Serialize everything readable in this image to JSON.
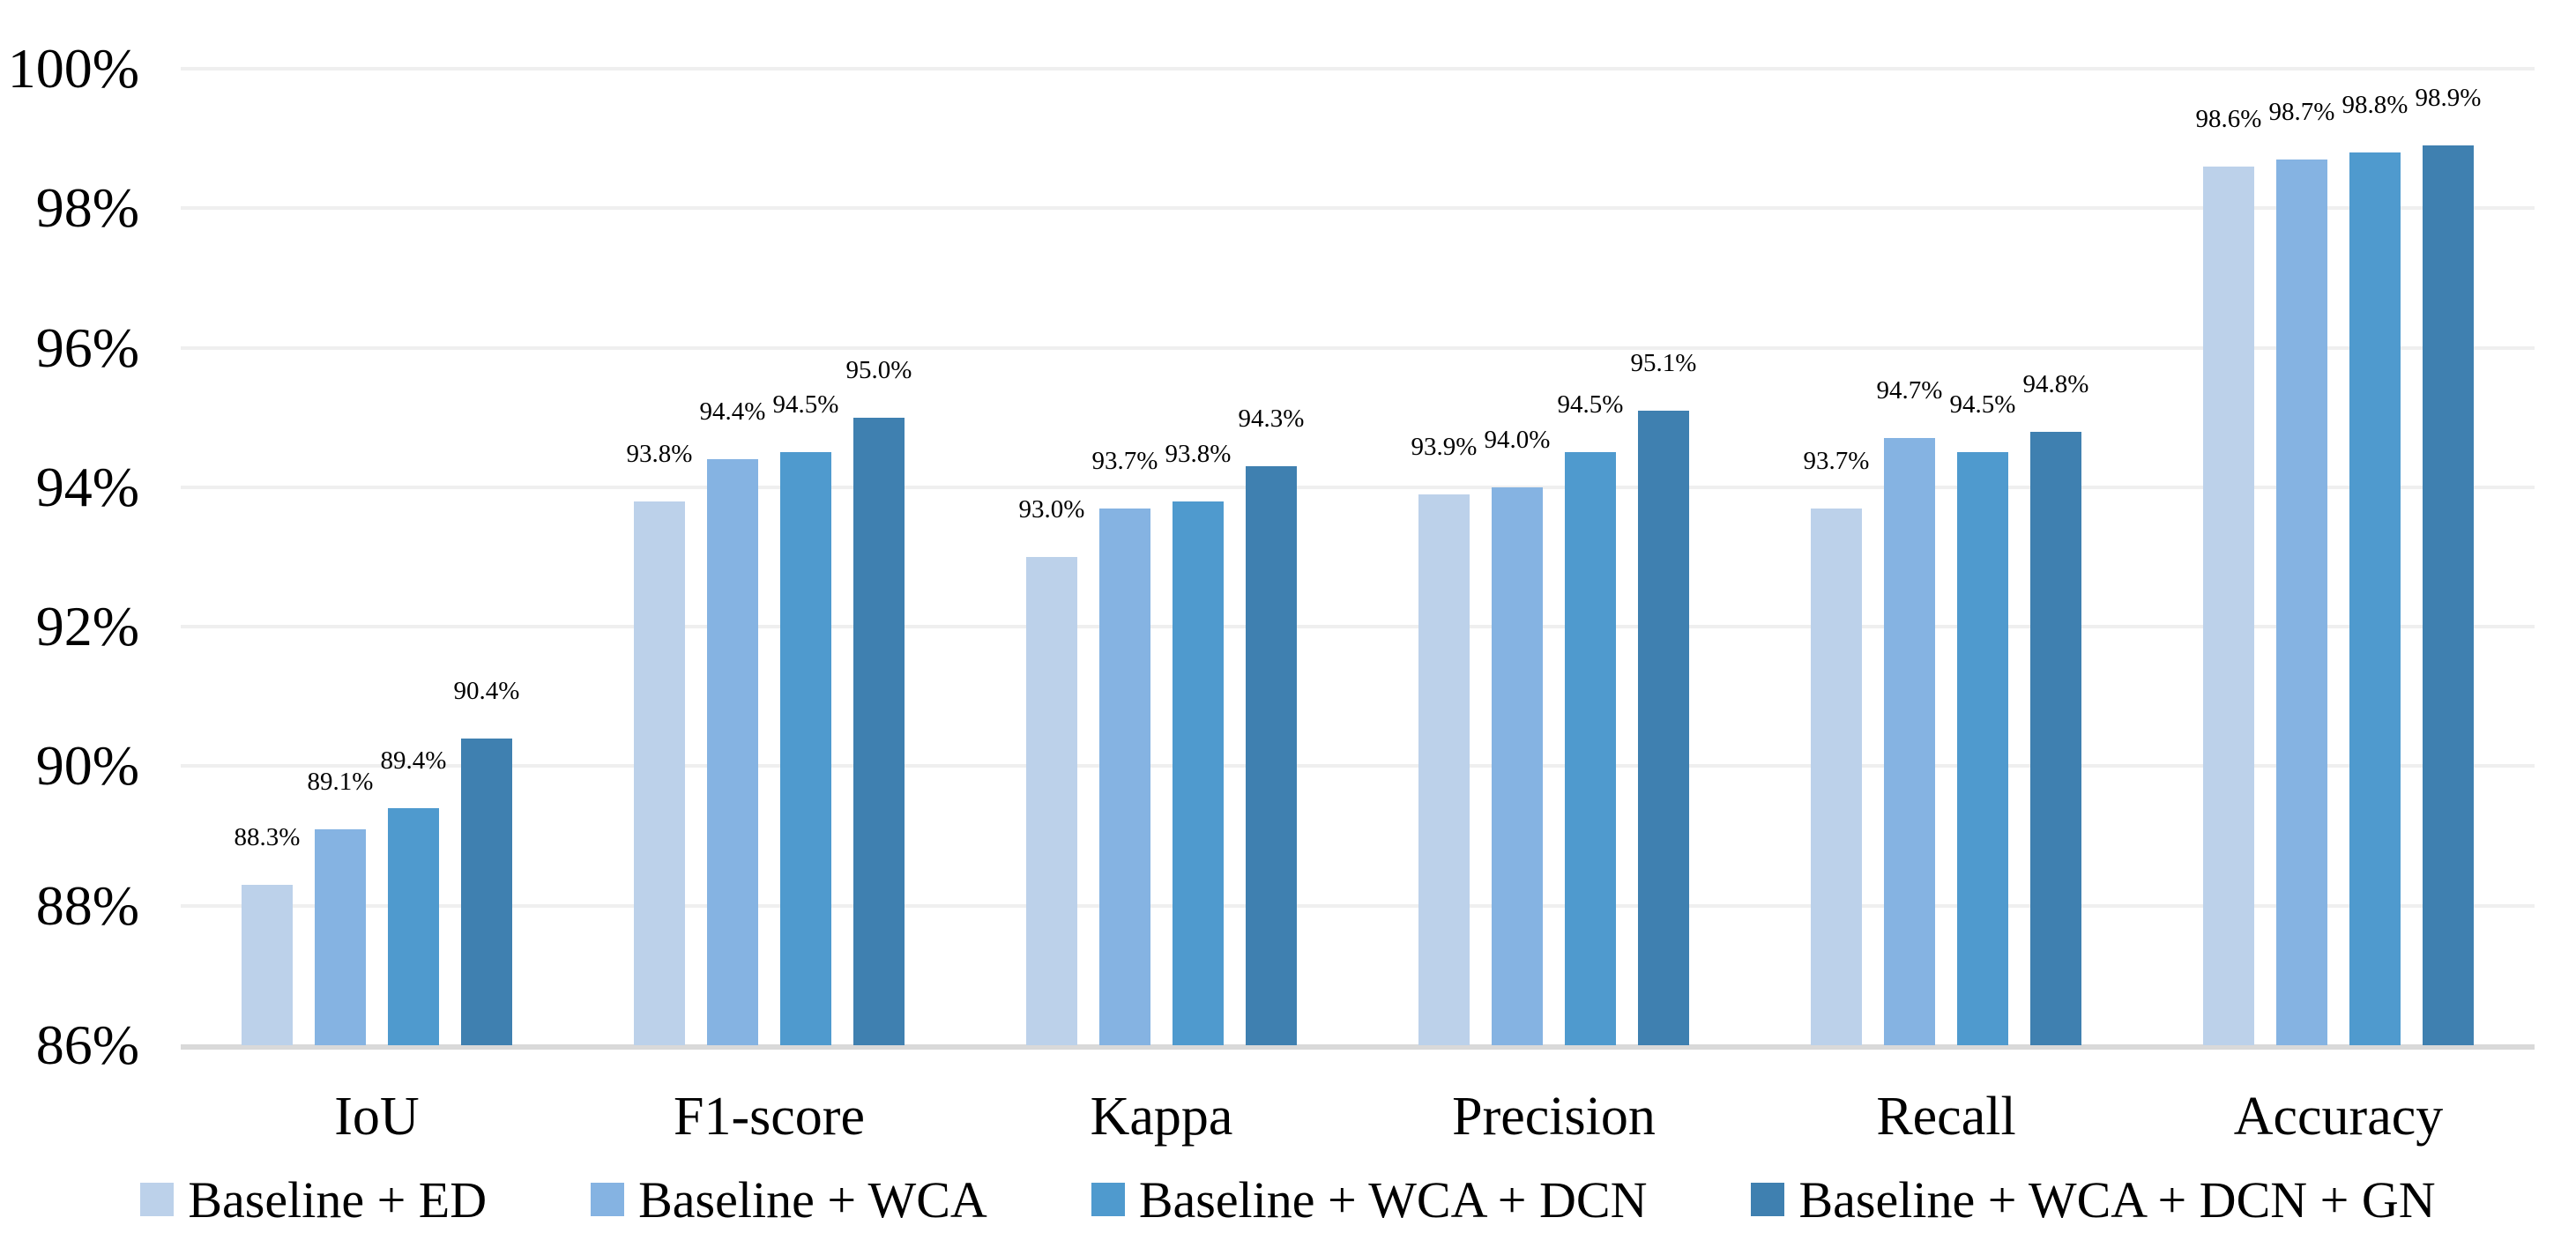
{
  "chart_data": {
    "type": "bar",
    "title": "",
    "xlabel": "",
    "ylabel": "",
    "categories": [
      "IoU",
      "F1-score",
      "Kappa",
      "Precision",
      "Recall",
      "Accuracy"
    ],
    "series": [
      {
        "name": "Baseline + ED",
        "color": "#bcd1ea",
        "values": [
          88.3,
          93.8,
          93.0,
          93.9,
          93.7,
          98.6
        ],
        "labels": [
          "88.3%",
          "93.8%",
          "93.0%",
          "93.9%",
          "93.7%",
          "98.6%"
        ]
      },
      {
        "name": "Baseline + WCA",
        "color": "#85b3e2",
        "values": [
          89.1,
          94.4,
          93.7,
          94.0,
          94.7,
          98.7
        ],
        "labels": [
          "89.1%",
          "94.4%",
          "93.7%",
          "94.0%",
          "94.7%",
          "98.7%"
        ]
      },
      {
        "name": "Baseline + WCA + DCN",
        "color": "#4f9ace",
        "values": [
          89.4,
          94.5,
          93.8,
          94.5,
          94.5,
          98.8
        ],
        "labels": [
          "89.4%",
          "94.5%",
          "93.8%",
          "94.5%",
          "94.5%",
          "98.8%"
        ]
      },
      {
        "name": "Baseline + WCA + DCN + GN",
        "color": "#3f80b0",
        "values": [
          90.4,
          95.0,
          94.3,
          95.1,
          94.8,
          98.9
        ],
        "labels": [
          "90.4%",
          "95.0%",
          "94.3%",
          "95.1%",
          "94.8%",
          "98.9%"
        ]
      }
    ],
    "ylim": [
      86,
      100
    ],
    "ytick_values": [
      86,
      88,
      90,
      92,
      94,
      96,
      98,
      100
    ],
    "ytick_labels": [
      "86%",
      "88%",
      "90%",
      "92%",
      "94%",
      "96%",
      "98%",
      "100%"
    ],
    "grid": true,
    "gridline_color": "#efefef",
    "axis_line_color": "#d9d9d9",
    "legend_position": "bottom",
    "text_color": "#000000"
  }
}
